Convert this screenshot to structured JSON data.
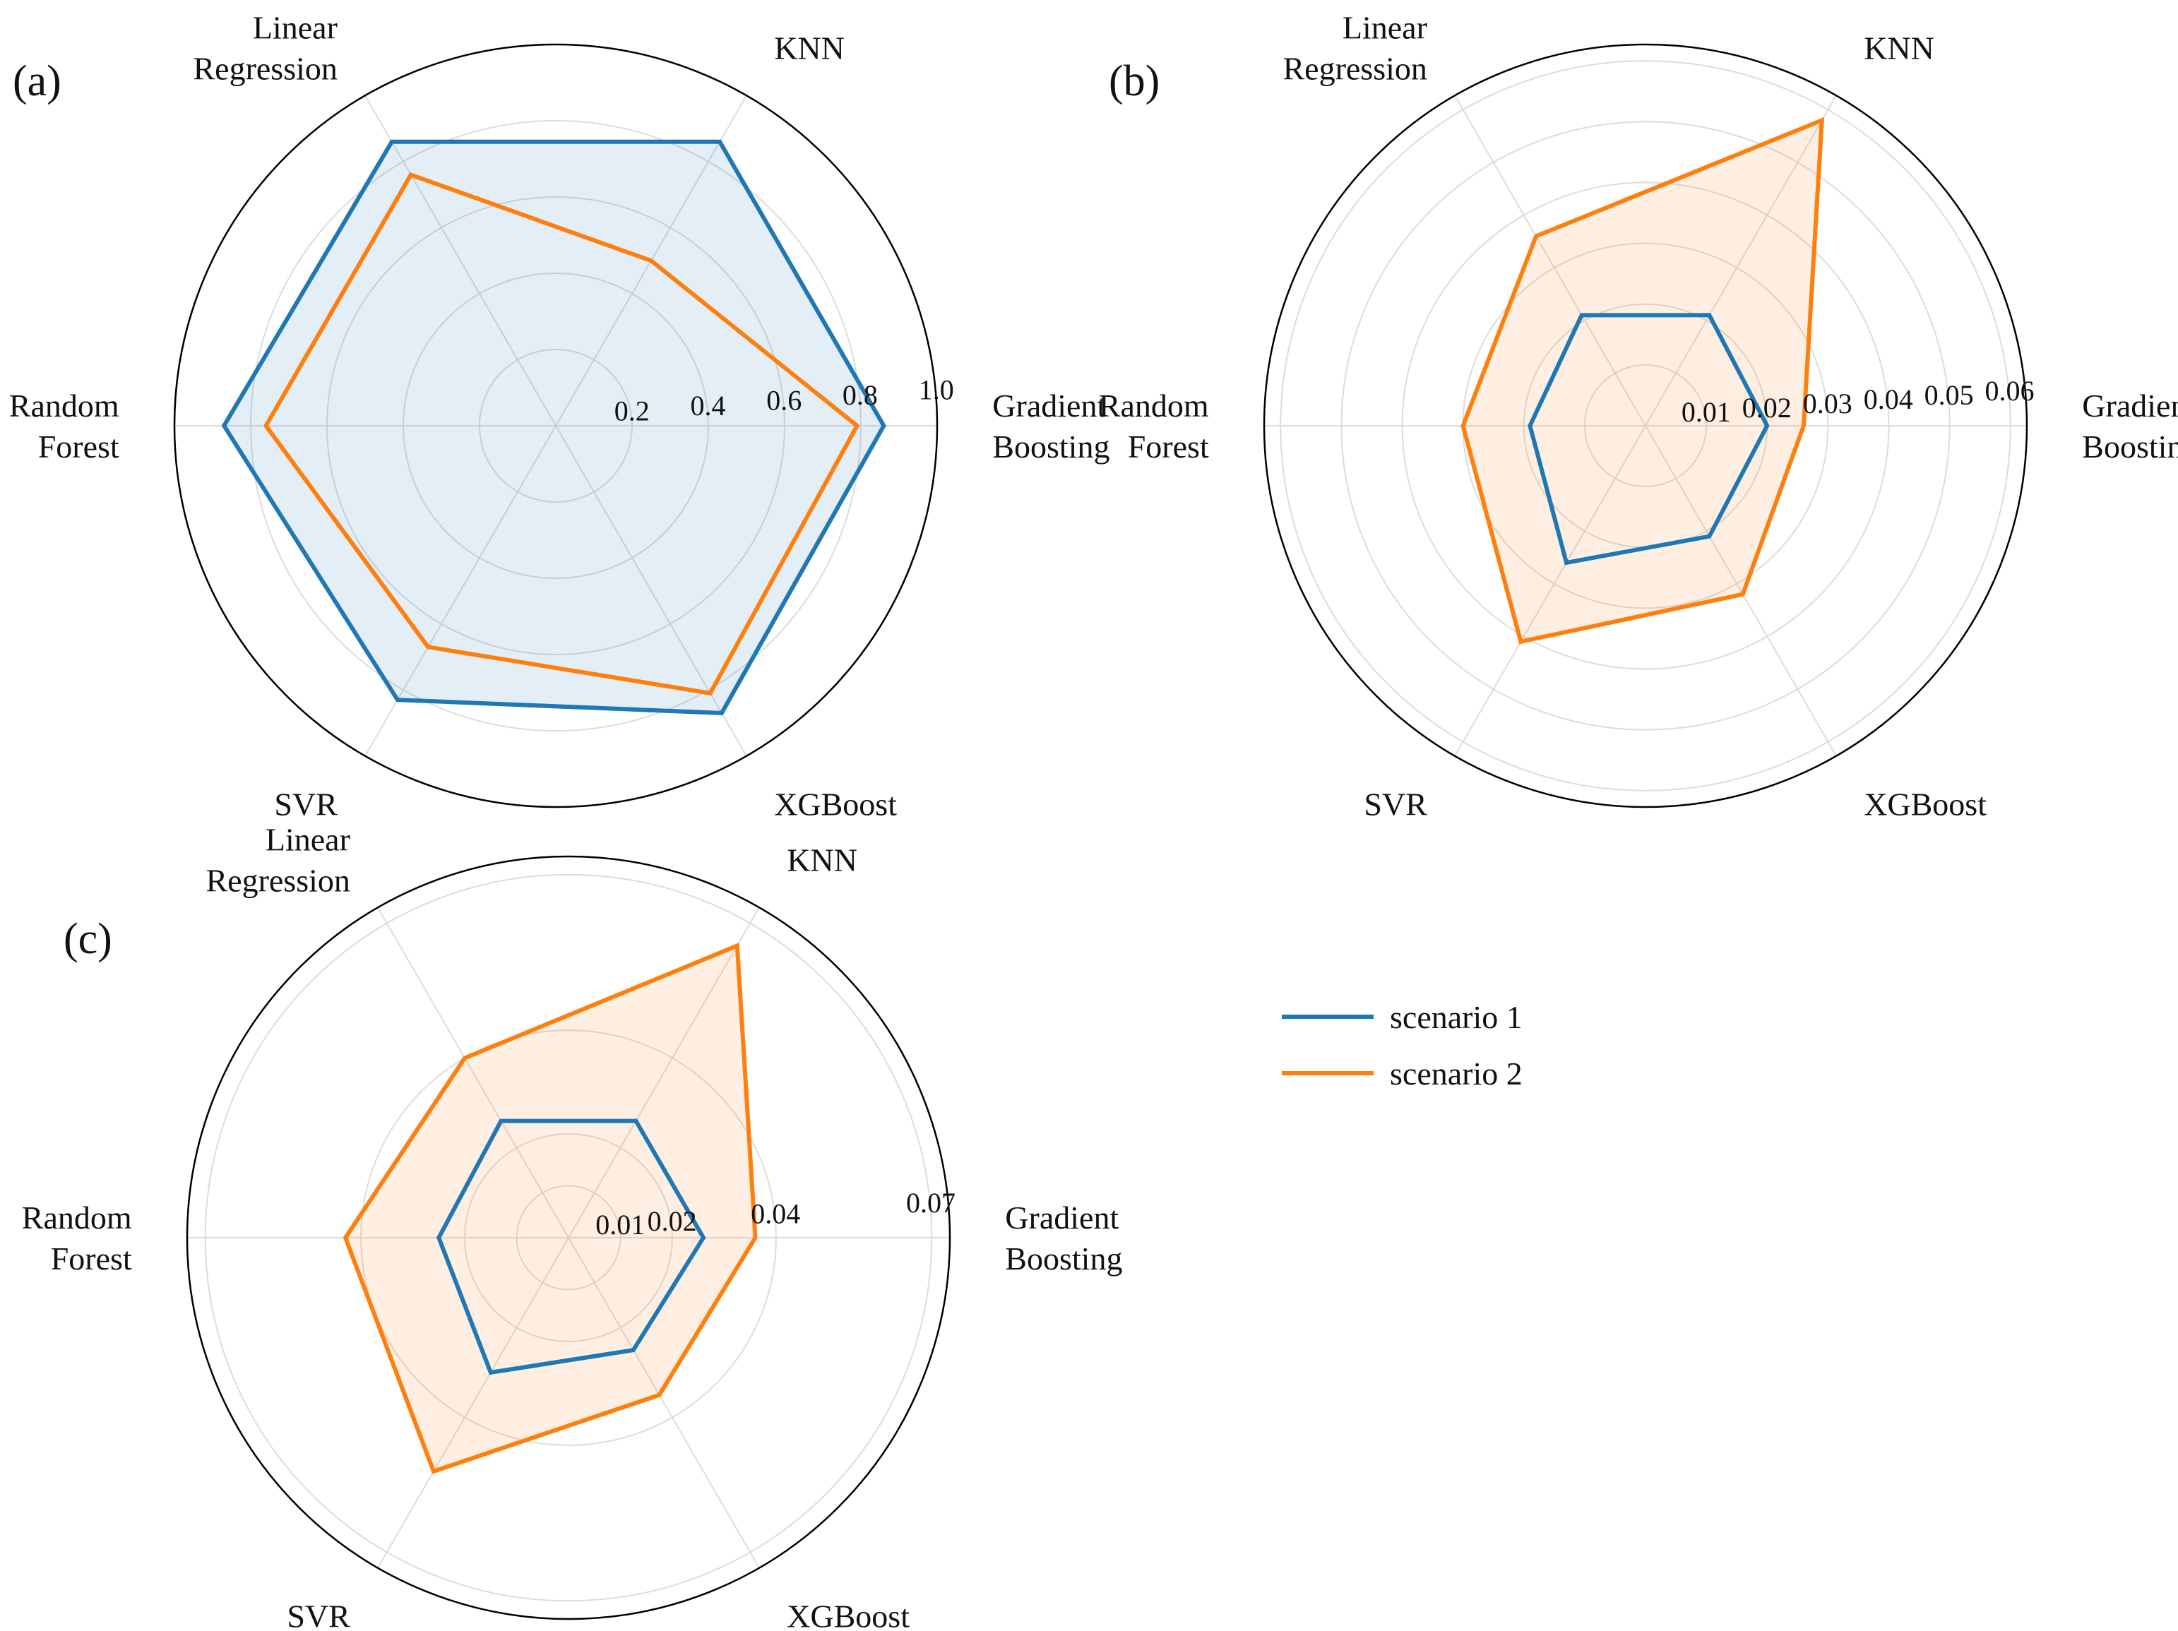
{
  "legend": [
    {
      "name": "scenario 1",
      "color": "#1f77b4"
    },
    {
      "name": "scenario 2",
      "color": "#ff7f0e"
    }
  ],
  "chart_data": [
    {
      "type": "radar",
      "panel": "(a)",
      "categories": [
        "Gradient Boosting",
        "KNN",
        "Linear Regression",
        "Random Forest",
        "SVR",
        "XGBoost"
      ],
      "category_lines": [
        [
          "Gradient",
          "Boosting"
        ],
        [
          "KNN"
        ],
        [
          "Linear",
          "Regression"
        ],
        [
          "Random",
          "Forest"
        ],
        [
          "SVR"
        ],
        [
          "XGBoost"
        ]
      ],
      "rlim": [
        0,
        1.0
      ],
      "rticks": [
        0.2,
        0.4,
        0.6,
        0.8,
        1.0
      ],
      "rtick_labels": [
        "0.2",
        "0.4",
        "0.6",
        "0.8",
        "1.0"
      ],
      "series": [
        {
          "name": "scenario 1",
          "values": [
            0.86,
            0.86,
            0.86,
            0.87,
            0.83,
            0.87
          ]
        },
        {
          "name": "scenario 2",
          "values": [
            0.79,
            0.5,
            0.76,
            0.76,
            0.67,
            0.81
          ]
        }
      ],
      "fill_series": "scenario 1",
      "grid": true
    },
    {
      "type": "radar",
      "panel": "(b)",
      "categories": [
        "Gradient Boosting",
        "KNN",
        "Linear Regression",
        "Random Forest",
        "SVR",
        "XGBoost"
      ],
      "category_lines": [
        [
          "Gradient",
          "Boosting"
        ],
        [
          "KNN"
        ],
        [
          "Linear",
          "Regression"
        ],
        [
          "Random",
          "Forest"
        ],
        [
          "SVR"
        ],
        [
          "XGBoost"
        ]
      ],
      "rlim": [
        0,
        0.0627
      ],
      "rticks": [
        0.01,
        0.02,
        0.03,
        0.04,
        0.05,
        0.06
      ],
      "rtick_labels": [
        "0.01",
        "0.02",
        "0.03",
        "0.04",
        "0.05",
        "0.06"
      ],
      "series": [
        {
          "name": "scenario 1",
          "values": [
            0.02,
            0.021,
            0.021,
            0.019,
            0.026,
            0.021
          ]
        },
        {
          "name": "scenario 2",
          "values": [
            0.026,
            0.058,
            0.036,
            0.03,
            0.041,
            0.032
          ]
        }
      ],
      "fill_series": "scenario 2",
      "grid": true
    },
    {
      "type": "radar",
      "panel": "(c)",
      "categories": [
        "Gradient Boosting",
        "KNN",
        "Linear Regression",
        "Random Forest",
        "SVR",
        "XGBoost"
      ],
      "category_lines": [
        [
          "Gradient",
          "Boosting"
        ],
        [
          "KNN"
        ],
        [
          "Linear",
          "Regression"
        ],
        [
          "Random",
          "Forest"
        ],
        [
          "SVR"
        ],
        [
          "XGBoost"
        ]
      ],
      "rlim": [
        0,
        0.0735
      ],
      "rticks": [
        0.01,
        0.02,
        0.04,
        0.07
      ],
      "rtick_labels": [
        "0.01",
        "0.02",
        "0.04",
        "0.07"
      ],
      "series": [
        {
          "name": "scenario 1",
          "values": [
            0.026,
            0.026,
            0.026,
            0.025,
            0.03,
            0.025
          ]
        },
        {
          "name": "scenario 2",
          "values": [
            0.036,
            0.065,
            0.04,
            0.043,
            0.052,
            0.035
          ]
        }
      ],
      "fill_series": "scenario 2",
      "grid": true
    }
  ]
}
